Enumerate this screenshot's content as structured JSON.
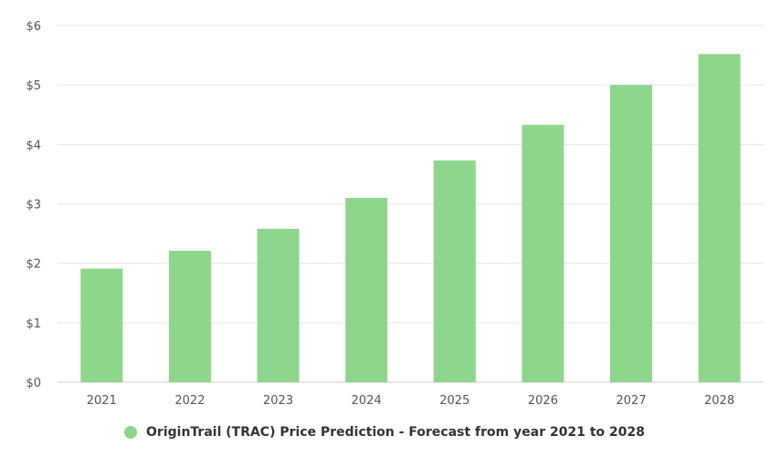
{
  "chart_data": {
    "type": "bar",
    "categories": [
      "2021",
      "2022",
      "2023",
      "2024",
      "2025",
      "2026",
      "2027",
      "2028"
    ],
    "series": [
      {
        "name": "OriginTrail (TRAC) Price Prediction - Forecast from year 2021 to 2028",
        "values": [
          1.91,
          2.21,
          2.58,
          3.1,
          3.73,
          4.33,
          5.0,
          5.52
        ]
      }
    ],
    "y_ticks": [
      "$0",
      "$1",
      "$2",
      "$3",
      "$4",
      "$5",
      "$6"
    ],
    "ylim": [
      0,
      6
    ],
    "grid": true,
    "legend_position": "bottom-center"
  },
  "colors": {
    "bar": "#8dd68c",
    "grid": "#e6e6e6",
    "axis": "#cccccc"
  }
}
